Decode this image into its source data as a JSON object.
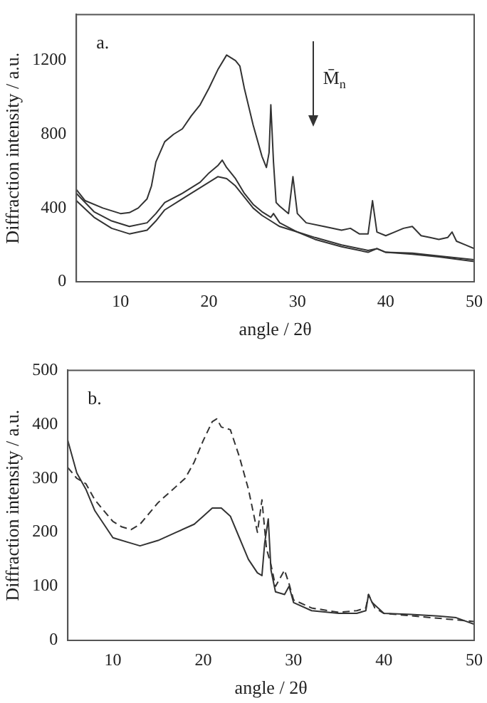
{
  "chart_data": [
    {
      "type": "line",
      "xlabel": "angle / 2θ",
      "ylabel": "Diffraction intensity / a.u.",
      "xlim": [
        5,
        50
      ],
      "xticks": [
        10,
        20,
        30,
        40,
        50
      ],
      "ylim": [
        0,
        1450
      ],
      "yticks": [
        0,
        400,
        800,
        1200
      ],
      "grid": false,
      "legend": false,
      "marker": "none",
      "line_style": "solid",
      "annotations": [
        "a.",
        "M̄$_{n}$"
      ],
      "series": [
        {
          "color": "#333333",
          "x": [
            5,
            6,
            8,
            10,
            11,
            12,
            13,
            13.5,
            14,
            15,
            16,
            17,
            18,
            19,
            20,
            21,
            22,
            23,
            23.5,
            24,
            25,
            26,
            26.5,
            26.8,
            27,
            27.3,
            27.6,
            28,
            29,
            29.5,
            30,
            31,
            33,
            35,
            36,
            37,
            38,
            38.5,
            39,
            40,
            41,
            42,
            43,
            44,
            45,
            46,
            47,
            47.5,
            48,
            49,
            50
          ],
          "values": [
            500,
            440,
            400,
            370,
            375,
            400,
            450,
            520,
            650,
            760,
            800,
            830,
            900,
            960,
            1050,
            1150,
            1230,
            1200,
            1170,
            1050,
            850,
            680,
            620,
            700,
            960,
            650,
            430,
            410,
            370,
            570,
            370,
            320,
            300,
            280,
            290,
            260,
            260,
            440,
            270,
            250,
            270,
            290,
            300,
            250,
            240,
            230,
            240,
            270,
            220,
            200,
            180
          ]
        },
        {
          "color": "#333333",
          "x": [
            5,
            7,
            9,
            11,
            13,
            14,
            15,
            17,
            19,
            20,
            21,
            21.5,
            22,
            23,
            24,
            25,
            26,
            27,
            27.3,
            28,
            30,
            32,
            35,
            38,
            39,
            40,
            43,
            46,
            50
          ],
          "values": [
            480,
            380,
            330,
            300,
            320,
            370,
            430,
            480,
            540,
            590,
            630,
            660,
            620,
            560,
            480,
            420,
            380,
            350,
            370,
            320,
            270,
            240,
            200,
            170,
            180,
            160,
            155,
            140,
            120
          ]
        },
        {
          "color": "#333333",
          "x": [
            5,
            7,
            9,
            11,
            13,
            14,
            15,
            17,
            19,
            21,
            22,
            23,
            24,
            25,
            26,
            27,
            28,
            30,
            32,
            35,
            38,
            39,
            40,
            43,
            46,
            50
          ],
          "values": [
            440,
            350,
            290,
            260,
            280,
            330,
            390,
            450,
            510,
            570,
            560,
            520,
            460,
            400,
            360,
            330,
            300,
            270,
            230,
            190,
            160,
            180,
            160,
            150,
            135,
            110
          ]
        }
      ]
    },
    {
      "type": "line",
      "xlabel": "angle / 2θ",
      "ylabel": "Diffraction intensity / a.u.",
      "xlim": [
        5,
        50
      ],
      "xticks": [
        10,
        20,
        30,
        40,
        50
      ],
      "ylim": [
        0,
        500
      ],
      "yticks": [
        0,
        100,
        200,
        300,
        400,
        500
      ],
      "grid": false,
      "legend": false,
      "marker": "none",
      "annotations": [
        "b."
      ],
      "series": [
        {
          "color": "#333333",
          "line_style": "solid",
          "x": [
            5,
            6,
            7,
            8,
            9,
            10,
            12,
            13,
            15,
            17,
            19,
            20,
            21,
            22,
            23,
            24,
            25,
            26,
            26.5,
            26.8,
            27.2,
            27.5,
            28,
            29,
            29.5,
            30,
            32,
            35,
            37,
            38,
            38.3,
            38.7,
            40,
            43,
            46,
            48,
            50
          ],
          "values": [
            370,
            310,
            280,
            240,
            215,
            190,
            180,
            175,
            185,
            200,
            215,
            230,
            245,
            245,
            230,
            190,
            150,
            125,
            120,
            180,
            225,
            130,
            90,
            85,
            100,
            70,
            55,
            50,
            50,
            55,
            85,
            70,
            50,
            48,
            45,
            42,
            30
          ]
        },
        {
          "color": "#333333",
          "line_style": "dashed",
          "x": [
            5,
            6,
            7,
            8,
            9,
            10,
            11,
            12,
            13,
            14,
            15,
            16,
            17,
            18,
            19,
            20,
            21,
            21.5,
            22,
            23,
            24,
            25,
            26,
            26.5,
            27,
            27.5,
            28,
            29,
            29.5,
            30,
            32,
            35,
            37,
            38,
            38.3,
            39,
            40,
            50
          ],
          "values": [
            320,
            300,
            290,
            260,
            240,
            220,
            210,
            205,
            215,
            235,
            255,
            270,
            285,
            300,
            330,
            370,
            405,
            410,
            395,
            390,
            340,
            280,
            200,
            260,
            170,
            140,
            100,
            130,
            105,
            75,
            60,
            52,
            55,
            60,
            85,
            60,
            50,
            35
          ]
        }
      ]
    }
  ]
}
